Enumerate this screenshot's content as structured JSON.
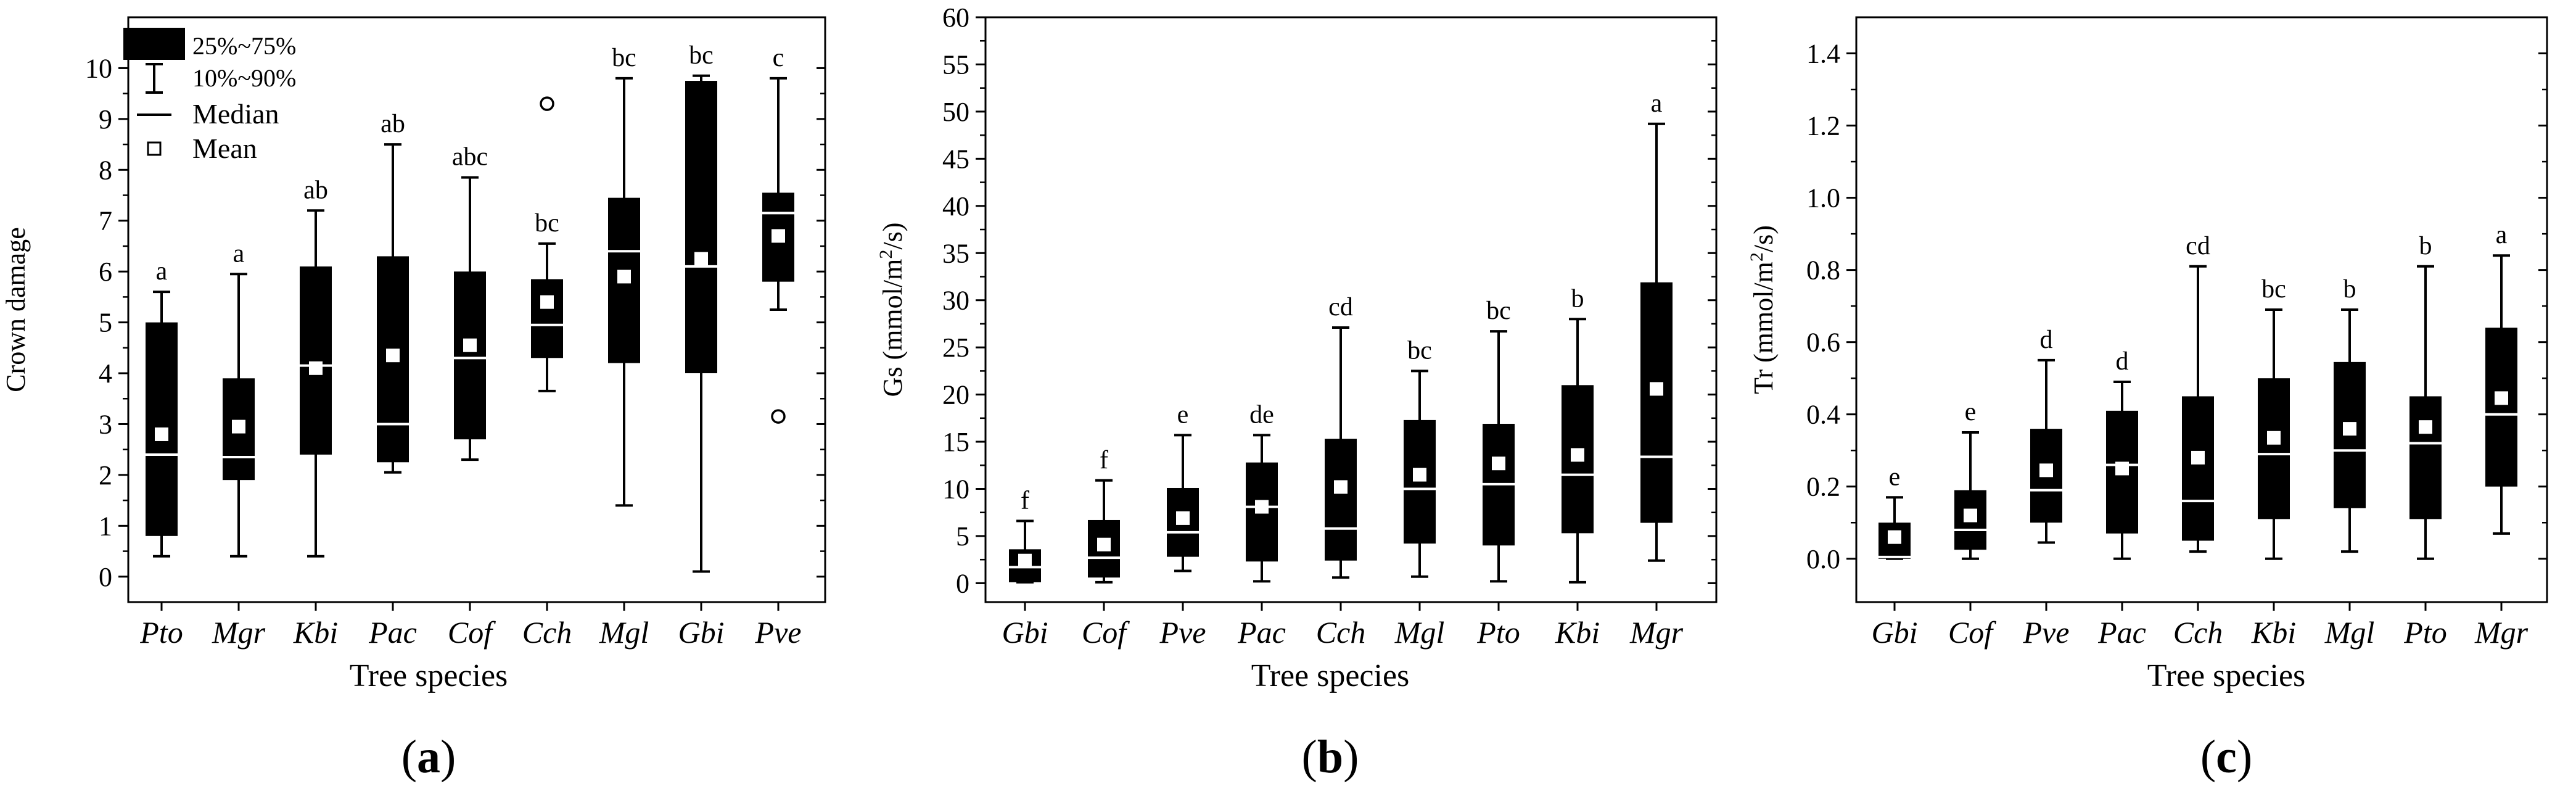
{
  "chart_data": [
    {
      "type": "boxplot",
      "panel_label": "(a)",
      "panel_letter": "a",
      "xlabel": "Tree species",
      "ylabel": "Crown damage",
      "ylim": [
        -0.5,
        11
      ],
      "yticks": [
        0,
        1,
        2,
        3,
        4,
        5,
        6,
        7,
        8,
        9,
        10
      ],
      "yticklabels": [
        "0",
        "1",
        "2",
        "3",
        "4",
        "5",
        "6",
        "7",
        "8",
        "9",
        "10"
      ],
      "legend": {
        "position": "top-left",
        "box": "25%~75%",
        "whisker": "10%~90%",
        "median": "Median",
        "mean": "Mean"
      },
      "categories": [
        "Pto",
        "Mgr",
        "Kbi",
        "Pac",
        "Cof",
        "Cch",
        "Mgl",
        "Gbi",
        "Pve"
      ],
      "boxes": [
        {
          "name": "Pto",
          "p10": 0.4,
          "q1": 0.8,
          "median": 2.4,
          "q3": 5.0,
          "p90": 5.6,
          "mean": 2.8,
          "sig": "a",
          "outliers": []
        },
        {
          "name": "Mgr",
          "p10": 0.4,
          "q1": 1.9,
          "median": 2.35,
          "q3": 3.9,
          "p90": 5.95,
          "mean": 2.95,
          "sig": "a",
          "outliers": []
        },
        {
          "name": "Kbi",
          "p10": 0.4,
          "q1": 2.4,
          "median": 4.15,
          "q3": 6.1,
          "p90": 7.2,
          "mean": 4.1,
          "sig": "ab",
          "outliers": []
        },
        {
          "name": "Pac",
          "p10": 2.05,
          "q1": 2.25,
          "median": 3.0,
          "q3": 6.3,
          "p90": 8.5,
          "mean": 4.35,
          "sig": "ab",
          "outliers": []
        },
        {
          "name": "Cof",
          "p10": 2.3,
          "q1": 2.7,
          "median": 4.3,
          "q3": 6.0,
          "p90": 7.85,
          "mean": 4.55,
          "sig": "abc",
          "outliers": []
        },
        {
          "name": "Cch",
          "p10": 3.65,
          "q1": 4.3,
          "median": 4.95,
          "q3": 5.85,
          "p90": 6.55,
          "mean": 5.4,
          "sig": "bc",
          "outliers": [
            9.3
          ]
        },
        {
          "name": "Mgl",
          "p10": 1.4,
          "q1": 4.2,
          "median": 6.4,
          "q3": 7.45,
          "p90": 9.8,
          "mean": 5.9,
          "sig": "bc",
          "outliers": []
        },
        {
          "name": "Gbi",
          "p10": 0.1,
          "q1": 4.0,
          "median": 6.1,
          "q3": 9.75,
          "p90": 9.85,
          "mean": 6.25,
          "sig": "bc",
          "outliers": []
        },
        {
          "name": "Pve",
          "p10": 5.25,
          "q1": 5.8,
          "median": 7.15,
          "q3": 7.55,
          "p90": 9.8,
          "mean": 6.7,
          "sig": "c",
          "outliers": [
            3.15
          ]
        }
      ]
    },
    {
      "type": "boxplot",
      "panel_label": "(b)",
      "panel_letter": "b",
      "xlabel": "Tree species",
      "ylabel_pre": "Gs (mmol/m",
      "ylabel_sup": "2",
      "ylabel_post": "/s)",
      "ylim": [
        -2,
        60
      ],
      "yticks": [
        0,
        5,
        10,
        15,
        20,
        25,
        30,
        35,
        40,
        45,
        50,
        55,
        60
      ],
      "yticklabels": [
        "0",
        "5",
        "10",
        "15",
        "20",
        "25",
        "30",
        "35",
        "40",
        "45",
        "50",
        "55",
        "60"
      ],
      "categories": [
        "Gbi",
        "Cof",
        "Pve",
        "Pac",
        "Cch",
        "Mgl",
        "Pto",
        "Kbi",
        "Mgr"
      ],
      "boxes": [
        {
          "name": "Gbi",
          "p10": 0.1,
          "q1": 0.1,
          "median": 1.7,
          "q3": 3.6,
          "p90": 6.6,
          "mean": 2.4,
          "sig": "f",
          "outliers": []
        },
        {
          "name": "Cof",
          "p10": 0.1,
          "q1": 0.6,
          "median": 2.7,
          "q3": 6.7,
          "p90": 10.9,
          "mean": 4.1,
          "sig": "f",
          "outliers": []
        },
        {
          "name": "Pve",
          "p10": 1.3,
          "q1": 2.8,
          "median": 5.4,
          "q3": 10.1,
          "p90": 15.7,
          "mean": 6.9,
          "sig": "e",
          "outliers": []
        },
        {
          "name": "Pac",
          "p10": 0.2,
          "q1": 2.3,
          "median": 8.1,
          "q3": 12.8,
          "p90": 15.7,
          "mean": 8.1,
          "sig": "de",
          "outliers": []
        },
        {
          "name": "Cch",
          "p10": 0.6,
          "q1": 2.4,
          "median": 5.8,
          "q3": 15.3,
          "p90": 27.1,
          "mean": 10.2,
          "sig": "cd",
          "outliers": []
        },
        {
          "name": "Mgl",
          "p10": 0.7,
          "q1": 4.2,
          "median": 10.0,
          "q3": 17.3,
          "p90": 22.5,
          "mean": 11.5,
          "sig": "bc",
          "outliers": []
        },
        {
          "name": "Pto",
          "p10": 0.2,
          "q1": 4.0,
          "median": 10.5,
          "q3": 16.9,
          "p90": 26.7,
          "mean": 12.7,
          "sig": "bc",
          "outliers": []
        },
        {
          "name": "Kbi",
          "p10": 0.1,
          "q1": 5.3,
          "median": 11.5,
          "q3": 21.0,
          "p90": 28.0,
          "mean": 13.6,
          "sig": "b",
          "outliers": []
        },
        {
          "name": "Mgr",
          "p10": 2.4,
          "q1": 6.4,
          "median": 13.4,
          "q3": 31.9,
          "p90": 48.7,
          "mean": 20.6,
          "sig": "a",
          "outliers": []
        }
      ]
    },
    {
      "type": "boxplot",
      "panel_label": "(c)",
      "panel_letter": "c",
      "xlabel": "Tree species",
      "ylabel_pre": "Tr (mmol/m",
      "ylabel_sup": "2",
      "ylabel_post": "/s)",
      "ylim": [
        -0.12,
        1.5
      ],
      "yticks": [
        0.0,
        0.2,
        0.4,
        0.6,
        0.8,
        1.0,
        1.2,
        1.4
      ],
      "yticklabels": [
        "0.0",
        "0.2",
        "0.4",
        "0.6",
        "0.8",
        "1.0",
        "1.2",
        "1.4"
      ],
      "categories": [
        "Gbi",
        "Cof",
        "Pve",
        "Pac",
        "Cch",
        "Kbi",
        "Mgl",
        "Pto",
        "Mgr"
      ],
      "boxes": [
        {
          "name": "Gbi",
          "p10": 0.0,
          "q1": 0.0,
          "median": 0.005,
          "q3": 0.1,
          "p90": 0.17,
          "mean": 0.06,
          "sig": "e",
          "outliers": []
        },
        {
          "name": "Cof",
          "p10": 0.0,
          "q1": 0.025,
          "median": 0.08,
          "q3": 0.19,
          "p90": 0.35,
          "mean": 0.12,
          "sig": "e",
          "outliers": []
        },
        {
          "name": "Pve",
          "p10": 0.045,
          "q1": 0.1,
          "median": 0.19,
          "q3": 0.36,
          "p90": 0.55,
          "mean": 0.245,
          "sig": "d",
          "outliers": []
        },
        {
          "name": "Pac",
          "p10": 0.0,
          "q1": 0.07,
          "median": 0.26,
          "q3": 0.41,
          "p90": 0.49,
          "mean": 0.25,
          "sig": "d",
          "outliers": []
        },
        {
          "name": "Cch",
          "p10": 0.02,
          "q1": 0.05,
          "median": 0.16,
          "q3": 0.45,
          "p90": 0.81,
          "mean": 0.28,
          "sig": "cd",
          "outliers": []
        },
        {
          "name": "Kbi",
          "p10": 0.0,
          "q1": 0.11,
          "median": 0.29,
          "q3": 0.5,
          "p90": 0.69,
          "mean": 0.335,
          "sig": "bc",
          "outliers": []
        },
        {
          "name": "Mgl",
          "p10": 0.02,
          "q1": 0.14,
          "median": 0.3,
          "q3": 0.545,
          "p90": 0.69,
          "mean": 0.36,
          "sig": "b",
          "outliers": []
        },
        {
          "name": "Pto",
          "p10": 0.0,
          "q1": 0.11,
          "median": 0.32,
          "q3": 0.45,
          "p90": 0.81,
          "mean": 0.365,
          "sig": "b",
          "outliers": []
        },
        {
          "name": "Mgr",
          "p10": 0.07,
          "q1": 0.2,
          "median": 0.4,
          "q3": 0.64,
          "p90": 0.84,
          "mean": 0.445,
          "sig": "a",
          "outliers": []
        }
      ]
    }
  ]
}
